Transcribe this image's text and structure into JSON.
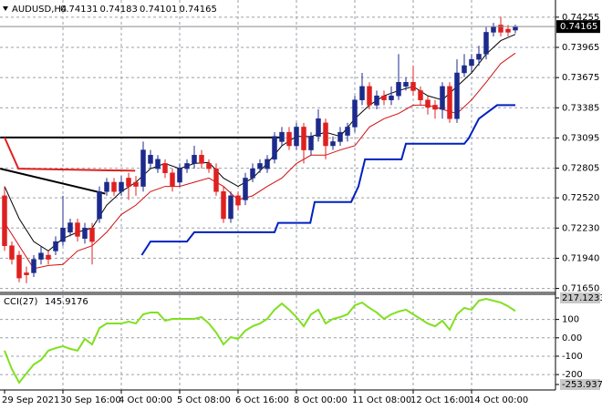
{
  "chart_data": [
    {
      "type": "candlestick",
      "title": "AUDUSD,H4",
      "categories": [
        "29 Sep 2021",
        null,
        null,
        null,
        null,
        null,
        null,
        null,
        "30 Sep 16:00",
        null,
        null,
        null,
        null,
        null,
        null,
        null,
        "4 Oct 00:00",
        null,
        null,
        null,
        null,
        null,
        null,
        null,
        "5 Oct 08:00",
        null,
        null,
        null,
        null,
        null,
        null,
        null,
        "6 Oct 16:00",
        null,
        null,
        null,
        null,
        null,
        null,
        null,
        "8 Oct 00:00",
        null,
        null,
        null,
        null,
        null,
        null,
        null,
        "11 Oct 08:00",
        null,
        null,
        null,
        null,
        null,
        null,
        null,
        "12 Oct 16:00",
        null,
        null,
        null,
        null,
        null,
        null,
        null,
        "14 Oct 00:00",
        null,
        null,
        null,
        null,
        null,
        null
      ],
      "open": [
        0.7254,
        0.7206,
        0.7197,
        0.718,
        0.718,
        0.7193,
        0.7197,
        0.7201,
        0.721,
        0.7219,
        0.7228,
        0.7213,
        0.7223,
        0.7232,
        0.7258,
        0.7267,
        0.7258,
        0.7271,
        0.7267,
        0.7263,
        0.7285,
        0.728,
        0.7285,
        0.7276,
        0.7267,
        0.728,
        0.7285,
        0.7293,
        0.7285,
        0.728,
        0.7258,
        0.7232,
        0.7254,
        0.725,
        0.7271,
        0.728,
        0.728,
        0.7289,
        0.7306,
        0.7315,
        0.7302,
        0.732,
        0.7298,
        0.7311,
        0.7324,
        0.7302,
        0.7306,
        0.7312,
        0.732,
        0.7346,
        0.7359,
        0.7341,
        0.735,
        0.7346,
        0.735,
        0.7359,
        0.7363,
        0.7355,
        0.7346,
        0.7341,
        0.7337,
        0.7359,
        0.7328,
        0.7372,
        0.7379,
        0.7385,
        0.739,
        0.7411,
        0.7418,
        0.7414,
        0.74131
      ],
      "high": [
        0.7263,
        0.721,
        0.7201,
        0.7186,
        0.7197,
        0.7205,
        0.7201,
        0.7215,
        0.7254,
        0.7232,
        0.7232,
        0.7228,
        0.7228,
        0.7263,
        0.7271,
        0.7271,
        0.7273,
        0.7276,
        0.7273,
        0.7306,
        0.7298,
        0.7293,
        0.7289,
        0.728,
        0.7285,
        0.7289,
        0.7302,
        0.7298,
        0.7289,
        0.7285,
        0.7263,
        0.7258,
        0.7258,
        0.7276,
        0.7285,
        0.7289,
        0.7293,
        0.7315,
        0.732,
        0.732,
        0.7324,
        0.7324,
        0.7315,
        0.7337,
        0.7328,
        0.7311,
        0.732,
        0.7324,
        0.735,
        0.7372,
        0.7363,
        0.7355,
        0.7355,
        0.7359,
        0.739,
        0.7368,
        0.7379,
        0.7359,
        0.735,
        0.7346,
        0.7363,
        0.7363,
        0.7385,
        0.739,
        0.739,
        0.7398,
        0.7416,
        0.742,
        0.7426,
        0.7418,
        0.74183
      ],
      "low": [
        0.7201,
        0.7188,
        0.7171,
        0.717,
        0.7176,
        0.7188,
        0.7188,
        0.7197,
        0.7206,
        0.7215,
        0.721,
        0.7208,
        0.7188,
        0.7228,
        0.7254,
        0.7254,
        0.7254,
        0.725,
        0.7254,
        0.7258,
        0.728,
        0.7276,
        0.7271,
        0.7258,
        0.7263,
        0.7276,
        0.728,
        0.728,
        0.7276,
        0.7254,
        0.7228,
        0.7228,
        0.724,
        0.7245,
        0.7267,
        0.7276,
        0.7276,
        0.7285,
        0.7302,
        0.7298,
        0.7298,
        0.7285,
        0.7293,
        0.7306,
        0.7289,
        0.7298,
        0.7302,
        0.7306,
        0.7315,
        0.7341,
        0.7337,
        0.7337,
        0.7341,
        0.7341,
        0.7346,
        0.7355,
        0.735,
        0.7341,
        0.7332,
        0.7328,
        0.7328,
        0.7324,
        0.7324,
        0.7368,
        0.7372,
        0.7379,
        0.7385,
        0.7407,
        0.7407,
        0.7407,
        0.74101
      ],
      "close": [
        0.7206,
        0.7193,
        0.7175,
        0.7178,
        0.7193,
        0.7199,
        0.7193,
        0.721,
        0.7223,
        0.7228,
        0.7215,
        0.7223,
        0.721,
        0.7258,
        0.7267,
        0.7258,
        0.7267,
        0.7263,
        0.7263,
        0.7298,
        0.7293,
        0.7289,
        0.7276,
        0.7263,
        0.728,
        0.7285,
        0.7293,
        0.7285,
        0.728,
        0.7258,
        0.7232,
        0.7254,
        0.7245,
        0.7271,
        0.728,
        0.7285,
        0.7289,
        0.7311,
        0.7315,
        0.7302,
        0.732,
        0.7298,
        0.7311,
        0.7328,
        0.7302,
        0.7306,
        0.7315,
        0.732,
        0.7346,
        0.7359,
        0.7341,
        0.735,
        0.7346,
        0.735,
        0.7363,
        0.7363,
        0.7355,
        0.7346,
        0.7339,
        0.7337,
        0.7359,
        0.7328,
        0.7372,
        0.7379,
        0.7385,
        0.739,
        0.7411,
        0.7416,
        0.7411,
        0.7411,
        0.74165
      ],
      "up_color": "#1c2a8c",
      "down_color": "#e02020",
      "ylim": [
        0.7162,
        0.7442
      ],
      "yticks": [
        0.74255,
        0.73965,
        0.73675,
        0.73385,
        0.73095,
        0.72805,
        {
          "value": 0.7252,
          "label": "0.72520"
        },
        {
          "value": 0.7223,
          "label": "0.72230"
        },
        {
          "value": 0.7194,
          "label": "0.71940"
        },
        {
          "value": 0.7165,
          "label": "0.71650"
        }
      ],
      "grid": true,
      "lines": [
        {
          "color": "#000000",
          "width": 1,
          "x": [
            0,
            2,
            4,
            6,
            8,
            10,
            12,
            14,
            16,
            18,
            20,
            22,
            24,
            26,
            28,
            30,
            32,
            34,
            36,
            38,
            40,
            42,
            44,
            46,
            48,
            50,
            52,
            54,
            56,
            58,
            60,
            62,
            64,
            66,
            68,
            70
          ],
          "values": [
            0.7263,
            0.7232,
            0.721,
            0.7201,
            0.7213,
            0.7219,
            0.7223,
            0.7245,
            0.7258,
            0.7267,
            0.728,
            0.7285,
            0.728,
            0.7285,
            0.7286,
            0.7271,
            0.7263,
            0.7271,
            0.7285,
            0.7302,
            0.7311,
            0.7311,
            0.7315,
            0.7311,
            0.7328,
            0.7341,
            0.735,
            0.7355,
            0.7359,
            0.735,
            0.7346,
            0.7359,
            0.7372,
            0.739,
            0.7403,
            0.7409
          ]
        },
        {
          "color": "#d01010",
          "width": 1,
          "x": [
            0,
            2,
            4,
            6,
            8,
            10,
            12,
            14,
            16,
            18,
            20,
            22,
            24,
            26,
            28,
            30,
            32,
            34,
            36,
            38,
            40,
            42,
            44,
            46,
            48,
            50,
            52,
            54,
            56,
            58,
            60,
            62,
            64,
            66,
            68,
            70
          ],
          "values": [
            0.7228,
            0.7206,
            0.7184,
            0.7187,
            0.7188,
            0.7201,
            0.7206,
            0.7219,
            0.7236,
            0.7245,
            0.7258,
            0.7263,
            0.7263,
            0.7267,
            0.7271,
            0.7263,
            0.725,
            0.7254,
            0.7263,
            0.7271,
            0.7285,
            0.7293,
            0.7293,
            0.7298,
            0.7302,
            0.732,
            0.7328,
            0.7333,
            0.7341,
            0.7341,
            0.7337,
            0.7333,
            0.7346,
            0.7363,
            0.7381,
            0.7391
          ]
        },
        {
          "color": "#0020c0",
          "width": 2,
          "x": [
            18.8,
            20,
            25,
            26,
            37,
            37.5,
            41.9,
            42.5,
            47.5,
            48.5,
            49.4,
            54.4,
            55,
            63,
            63.6,
            65,
            67.5,
            70
          ],
          "values": [
            0.7197,
            0.721,
            0.721,
            0.7219,
            0.7219,
            0.7228,
            0.7228,
            0.7248,
            0.7248,
            0.7263,
            0.7289,
            0.7289,
            0.7304,
            0.7304,
            0.7309,
            0.7328,
            0.7341,
            0.7341
          ]
        },
        {
          "color": "#000000",
          "width": 2,
          "x": [
            -0.6,
            38
          ],
          "values": [
            0.731,
            0.731
          ]
        },
        {
          "color": "#000000",
          "width": 2,
          "x": [
            -0.6,
            13.8
          ],
          "values": [
            0.728,
            0.7256
          ]
        },
        {
          "color": "#e02020",
          "width": 2,
          "x": [
            0,
            1.9,
            17.9
          ],
          "values": [
            0.731,
            0.728,
            0.7278
          ]
        }
      ]
    },
    {
      "type": "line",
      "title": "CCI(27)",
      "color": "#80e020",
      "values": [
        -70,
        -170,
        -244,
        -194,
        -145,
        -120,
        -70,
        -56,
        -46,
        -60,
        -70,
        -6,
        -36,
        53,
        78,
        78,
        78,
        88,
        78,
        128,
        138,
        138,
        93,
        103,
        103,
        103,
        103,
        113,
        78,
        29,
        -36,
        4,
        -6,
        39,
        63,
        78,
        103,
        153,
        187,
        153,
        113,
        63,
        128,
        153,
        78,
        103,
        113,
        128,
        177,
        192,
        163,
        138,
        103,
        128,
        143,
        153,
        128,
        103,
        78,
        63,
        93,
        44,
        128,
        163,
        153,
        202,
        212,
        202,
        192,
        172,
        145.9176
      ],
      "ylim": [
        -253.9371,
        217.1233
      ],
      "yticks": [
        217.1233,
        100,
        {
          "value": 0,
          "label": "0.00"
        },
        -100,
        -200,
        -253.9371
      ]
    }
  ]
}
